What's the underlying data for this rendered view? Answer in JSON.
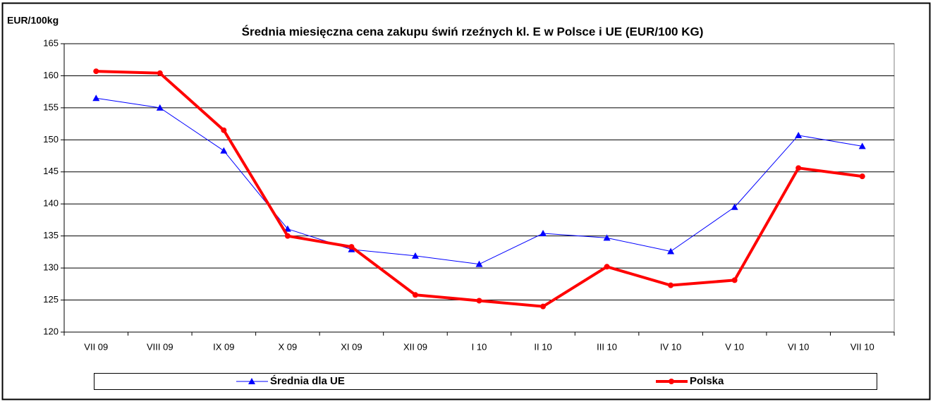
{
  "chart_data": {
    "type": "line",
    "title": "Średnia miesięczna cena zakupu świń rzeźnych kl. E w  Polsce i UE (EUR/100 KG)",
    "y_label": "EUR/100kg",
    "categories": [
      "VII 09",
      "VIII 09",
      "IX 09",
      "X 09",
      "XI 09",
      "XII 09",
      "I 10",
      "II 10",
      "III 10",
      "IV 10",
      "V 10",
      "VI 10",
      "VII 10"
    ],
    "series": [
      {
        "name": "Średnia dla  UE",
        "color": "#0000ff",
        "marker": "triangle",
        "values": [
          156.5,
          155.0,
          148.3,
          136.1,
          132.9,
          131.9,
          130.6,
          135.4,
          134.7,
          132.6,
          139.5,
          150.7,
          149.0
        ]
      },
      {
        "name": "Polska",
        "color": "#ff0000",
        "marker": "circle",
        "values": [
          160.7,
          160.4,
          151.5,
          135.0,
          133.3,
          125.8,
          124.9,
          124.0,
          130.2,
          127.3,
          128.1,
          145.6,
          144.3
        ]
      }
    ],
    "ylim": [
      120,
      165
    ],
    "yticks": [
      120,
      125,
      130,
      135,
      140,
      145,
      150,
      155,
      160,
      165
    ],
    "grid": true,
    "legend": "bottom"
  }
}
